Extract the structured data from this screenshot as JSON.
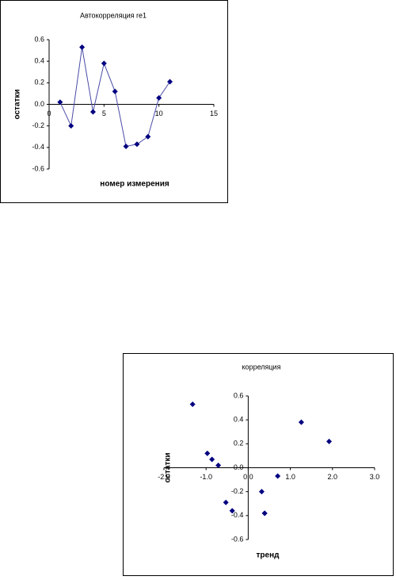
{
  "chart_data": [
    {
      "type": "line",
      "title": "Автокорреляция re1",
      "x_label": "номер измерения",
      "y_label": "остатки",
      "x": [
        1,
        2,
        3,
        4,
        5,
        6,
        7,
        8,
        9,
        10,
        11
      ],
      "values": [
        0.02,
        -0.2,
        0.53,
        -0.07,
        0.38,
        0.12,
        -0.39,
        -0.37,
        -0.3,
        0.06,
        0.21
      ],
      "color": "#000080",
      "line_color": "#4a4aa8",
      "xlim": [
        0,
        15
      ],
      "xticks": [
        0,
        5,
        10,
        15
      ],
      "ylim": [
        -0.6,
        0.6
      ],
      "yticks": [
        -0.6,
        -0.4,
        -0.2,
        {
          "value": 0,
          "label": "0.0"
        },
        0.2,
        0.4,
        0.6
      ]
    },
    {
      "type": "scatter",
      "title": "корреляция",
      "x_label": "тренд",
      "y_label": "остатки",
      "x": [
        -0.53,
        -0.38,
        -1.32,
        0.32,
        1.26,
        0.7,
        0.39,
        0.39,
        -0.97,
        -0.86,
        -0.71,
        1.92
      ],
      "values": [
        -0.29,
        -0.36,
        0.53,
        -0.2,
        0.38,
        -0.07,
        -0.38,
        -0.38,
        0.12,
        0.07,
        0.02,
        0.22
      ],
      "color": "#000080",
      "xlim": [
        -2,
        3
      ],
      "xticks": [
        {
          "value": -2,
          "label": "-2.0"
        },
        {
          "value": -1,
          "label": "-1.0"
        },
        {
          "value": 0,
          "label": "0.0"
        },
        {
          "value": 1,
          "label": "1.0"
        },
        {
          "value": 2,
          "label": "2.0"
        },
        {
          "value": 3,
          "label": "3.0"
        }
      ],
      "ylim": [
        -0.6,
        0.6
      ],
      "yticks": [
        -0.6,
        -0.4,
        -0.2,
        {
          "value": 0,
          "label": "0.0"
        },
        0.2,
        0.4,
        0.6
      ]
    }
  ]
}
